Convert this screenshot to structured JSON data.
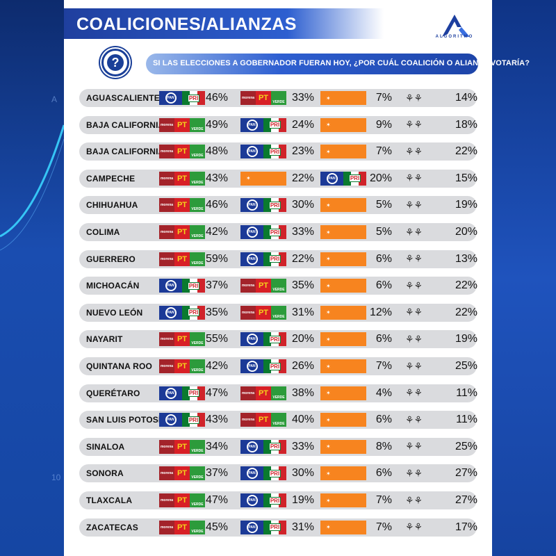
{
  "header": {
    "title": "COALICIONES/ALIANZAS",
    "brand": "ALGORITMO"
  },
  "question": {
    "icon_text": "?",
    "text": "SI LAS ELECCIONES A GOBERNADOR FUERAN HOY, ¿POR CUÁL COALICIÓN O ALIANZA VOTARÍA?"
  },
  "background": {
    "left_tag": "A",
    "left_number": "10"
  },
  "logo_text": {
    "pan": "PAN",
    "pri": "PRI",
    "morena": "morena",
    "pt": "PT",
    "verde": "VERDE"
  },
  "colors": {
    "accent": "#1d44a8",
    "row_bg": "#dadbde",
    "mc_orange": "#f7841f",
    "morena": "#a3232a",
    "pt": "#d81f26",
    "verde": "#2c9b3b",
    "pan": "#1c3a97"
  },
  "icons": {
    "question": "question-icon",
    "pan": "pan-logo-icon",
    "pri": "pri-logo-icon",
    "morena": "morena-logo-icon",
    "pt": "pt-logo-icon",
    "verde": "verde-logo-icon",
    "mc": "mc-eagle-icon",
    "other": "undecided-people-icon"
  },
  "rows": [
    {
      "state": "AGUASCALIENTES",
      "c1": "panpri",
      "p1": "46%",
      "c2": "mpv",
      "p2": "33%",
      "c3": "mc",
      "p3": "7%",
      "p4": "14%"
    },
    {
      "state": "BAJA CALIFORNIA",
      "c1": "mpv",
      "p1": "49%",
      "c2": "panpri",
      "p2": "24%",
      "c3": "mc",
      "p3": "9%",
      "p4": "18%"
    },
    {
      "state": "BAJA CALIFORNIA SUR",
      "c1": "mpv",
      "p1": "48%",
      "c2": "panpri",
      "p2": "23%",
      "c3": "mc",
      "p3": "7%",
      "p4": "22%"
    },
    {
      "state": "CAMPECHE",
      "c1": "mpv",
      "p1": "43%",
      "c2": "mc",
      "p2": "22%",
      "c3": "panpri",
      "p3": "20%",
      "p4": "15%"
    },
    {
      "state": "CHIHUAHUA",
      "c1": "mpv",
      "p1": "46%",
      "c2": "panpri",
      "p2": "30%",
      "c3": "mc",
      "p3": "5%",
      "p4": "19%"
    },
    {
      "state": "COLIMA",
      "c1": "mpv",
      "p1": "42%",
      "c2": "panpri",
      "p2": "33%",
      "c3": "mc",
      "p3": "5%",
      "p4": "20%"
    },
    {
      "state": "GUERRERO",
      "c1": "mpv",
      "p1": "59%",
      "c2": "panpri",
      "p2": "22%",
      "c3": "mc",
      "p3": "6%",
      "p4": "13%"
    },
    {
      "state": "MICHOACÁN",
      "c1": "panpri",
      "p1": "37%",
      "c2": "mpv",
      "p2": "35%",
      "c3": "mc",
      "p3": "6%",
      "p4": "22%"
    },
    {
      "state": "NUEVO LEÓN",
      "c1": "panpri",
      "p1": "35%",
      "c2": "mpv",
      "p2": "31%",
      "c3": "mc",
      "p3": "12%",
      "p4": "22%"
    },
    {
      "state": "NAYARIT",
      "c1": "mpv",
      "p1": "55%",
      "c2": "panpri",
      "p2": "20%",
      "c3": "mc",
      "p3": "6%",
      "p4": "19%"
    },
    {
      "state": "QUINTANA ROO",
      "c1": "mpv",
      "p1": "42%",
      "c2": "panpri",
      "p2": "26%",
      "c3": "mc",
      "p3": "7%",
      "p4": "25%"
    },
    {
      "state": "QUERÉTARO",
      "c1": "panpri",
      "p1": "47%",
      "c2": "mpv",
      "p2": "38%",
      "c3": "mc",
      "p3": "4%",
      "p4": "11%"
    },
    {
      "state": "SAN LUIS POTOSÍ",
      "c1": "panpri",
      "p1": "43%",
      "c2": "mpv",
      "p2": "40%",
      "c3": "mc",
      "p3": "6%",
      "p4": "11%"
    },
    {
      "state": "SINALOA",
      "c1": "mpv",
      "p1": "34%",
      "c2": "panpri",
      "p2": "33%",
      "c3": "mc",
      "p3": "8%",
      "p4": "25%"
    },
    {
      "state": "SONORA",
      "c1": "mpv",
      "p1": "37%",
      "c2": "panpri",
      "p2": "30%",
      "c3": "mc",
      "p3": "6%",
      "p4": "27%"
    },
    {
      "state": "TLAXCALA",
      "c1": "mpv",
      "p1": "47%",
      "c2": "panpri",
      "p2": "19%",
      "c3": "mc",
      "p3": "7%",
      "p4": "27%"
    },
    {
      "state": "ZACATECAS",
      "c1": "mpv",
      "p1": "45%",
      "c2": "panpri",
      "p2": "31%",
      "c3": "mc",
      "p3": "7%",
      "p4": "17%"
    }
  ]
}
